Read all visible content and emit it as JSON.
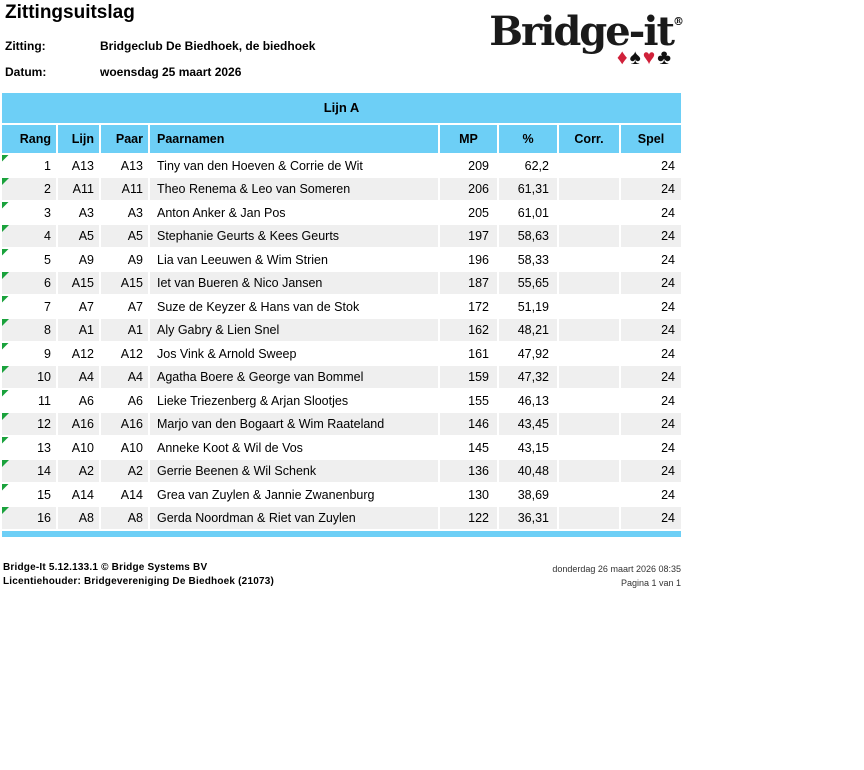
{
  "page": {
    "title": "Zittingsuitslag",
    "session_label": "Zitting:",
    "session_value": "Bridgeclub De Biedhoek, de biedhoek",
    "date_label": "Datum:",
    "date_value": "woensdag 25 maart 2026"
  },
  "logo": {
    "text": "Bridge-it",
    "registered_mark": "®",
    "suits": [
      {
        "name": "diamond",
        "glyph": "♦",
        "color": "#d0213a"
      },
      {
        "name": "spade",
        "glyph": "♠",
        "color": "#111111"
      },
      {
        "name": "heart",
        "glyph": "♥",
        "color": "#d0213a"
      },
      {
        "name": "club",
        "glyph": "♣",
        "color": "#111111"
      }
    ]
  },
  "table": {
    "section_title": "Lijn A",
    "columns": [
      "Rang",
      "Lijn",
      "Paar",
      "Paarnamen",
      "MP",
      "%",
      "Corr.",
      "Spel"
    ],
    "rows": [
      {
        "rang": "1",
        "lijn": "A13",
        "paar": "A13",
        "paarnamen": "Tiny van den Hoeven & Corrie de Wit",
        "mp": "209",
        "pct": "62,2",
        "corr": "",
        "spel": "24"
      },
      {
        "rang": "2",
        "lijn": "A11",
        "paar": "A11",
        "paarnamen": "Theo Renema & Leo van Someren",
        "mp": "206",
        "pct": "61,31",
        "corr": "",
        "spel": "24"
      },
      {
        "rang": "3",
        "lijn": "A3",
        "paar": "A3",
        "paarnamen": "Anton Anker & Jan Pos",
        "mp": "205",
        "pct": "61,01",
        "corr": "",
        "spel": "24"
      },
      {
        "rang": "4",
        "lijn": "A5",
        "paar": "A5",
        "paarnamen": "Stephanie Geurts & Kees Geurts",
        "mp": "197",
        "pct": "58,63",
        "corr": "",
        "spel": "24"
      },
      {
        "rang": "5",
        "lijn": "A9",
        "paar": "A9",
        "paarnamen": "Lia van Leeuwen & Wim Strien",
        "mp": "196",
        "pct": "58,33",
        "corr": "",
        "spel": "24"
      },
      {
        "rang": "6",
        "lijn": "A15",
        "paar": "A15",
        "paarnamen": "Iet van Bueren & Nico Jansen",
        "mp": "187",
        "pct": "55,65",
        "corr": "",
        "spel": "24"
      },
      {
        "rang": "7",
        "lijn": "A7",
        "paar": "A7",
        "paarnamen": "Suze de Keyzer & Hans van de Stok",
        "mp": "172",
        "pct": "51,19",
        "corr": "",
        "spel": "24"
      },
      {
        "rang": "8",
        "lijn": "A1",
        "paar": "A1",
        "paarnamen": "Aly Gabry & Lien Snel",
        "mp": "162",
        "pct": "48,21",
        "corr": "",
        "spel": "24"
      },
      {
        "rang": "9",
        "lijn": "A12",
        "paar": "A12",
        "paarnamen": "Jos Vink & Arnold Sweep",
        "mp": "161",
        "pct": "47,92",
        "corr": "",
        "spel": "24"
      },
      {
        "rang": "10",
        "lijn": "A4",
        "paar": "A4",
        "paarnamen": "Agatha Boere & George van Bommel",
        "mp": "159",
        "pct": "47,32",
        "corr": "",
        "spel": "24"
      },
      {
        "rang": "11",
        "lijn": "A6",
        "paar": "A6",
        "paarnamen": "Lieke Triezenberg & Arjan Slootjes",
        "mp": "155",
        "pct": "46,13",
        "corr": "",
        "spel": "24"
      },
      {
        "rang": "12",
        "lijn": "A16",
        "paar": "A16",
        "paarnamen": "Marjo van den Bogaart & Wim Raateland",
        "mp": "146",
        "pct": "43,45",
        "corr": "",
        "spel": "24"
      },
      {
        "rang": "13",
        "lijn": "A10",
        "paar": "A10",
        "paarnamen": "Anneke Koot & Wil de Vos",
        "mp": "145",
        "pct": "43,15",
        "corr": "",
        "spel": "24"
      },
      {
        "rang": "14",
        "lijn": "A2",
        "paar": "A2",
        "paarnamen": "Gerrie Beenen & Wil Schenk",
        "mp": "136",
        "pct": "40,48",
        "corr": "",
        "spel": "24"
      },
      {
        "rang": "15",
        "lijn": "A14",
        "paar": "A14",
        "paarnamen": "Grea van Zuylen & Jannie Zwanenburg",
        "mp": "130",
        "pct": "38,69",
        "corr": "",
        "spel": "24"
      },
      {
        "rang": "16",
        "lijn": "A8",
        "paar": "A8",
        "paarnamen": "Gerda Noordman & Riet van Zuylen",
        "mp": "122",
        "pct": "36,31",
        "corr": "",
        "spel": "24"
      }
    ]
  },
  "footer": {
    "left_line1": "Bridge-It 5.12.133.1 © Bridge Systems BV",
    "left_line2": "Licentiehouder: Bridgevereniging De Biedhoek (21073)",
    "right_line1": "donderdag 26 maart 2026 08:35",
    "right_line2": "Pagina 1 van 1"
  },
  "colors": {
    "accent_blue": "#6dcff6",
    "row_alt_gray": "#efefef",
    "marker_green": "#1aa23c",
    "suit_red": "#d0213a"
  }
}
